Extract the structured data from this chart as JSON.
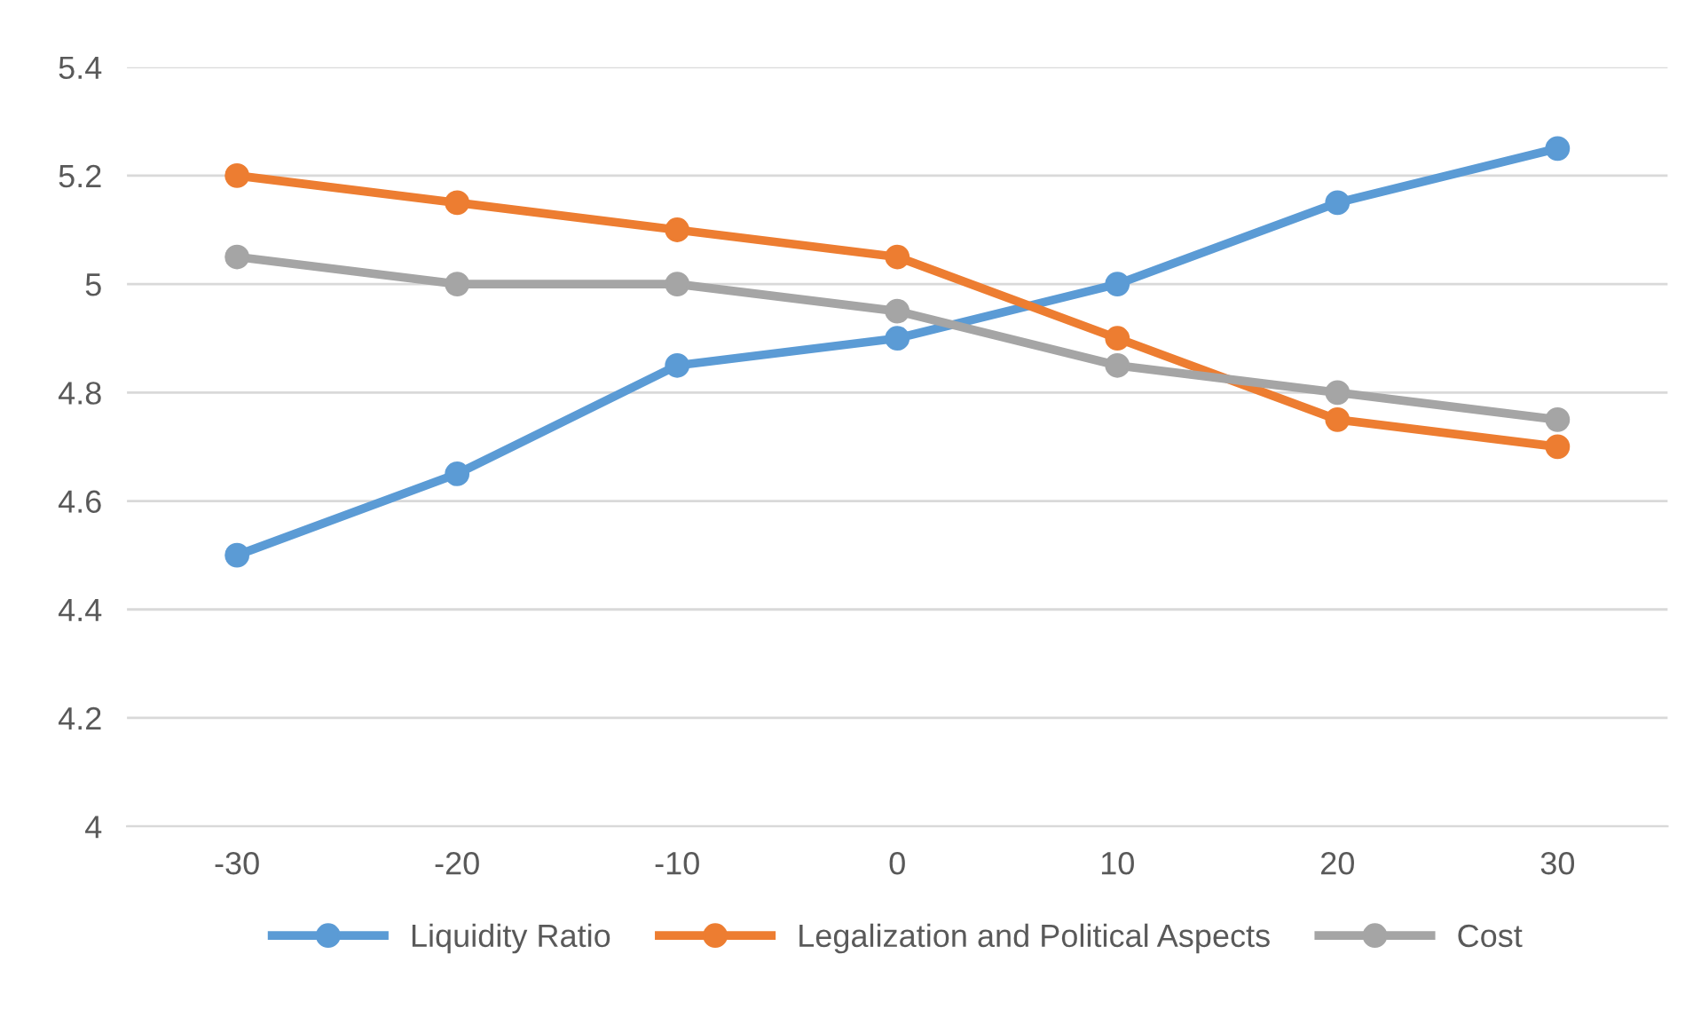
{
  "chart_data": {
    "type": "line",
    "categories": [
      "-30",
      "-20",
      "-10",
      "0",
      "10",
      "20",
      "30"
    ],
    "series": [
      {
        "name": "Liquidity Ratio",
        "color": "#5b9bd5",
        "values": [
          4.5,
          4.65,
          4.85,
          4.9,
          5.0,
          5.15,
          5.25
        ]
      },
      {
        "name": "Legalization and Political Aspects",
        "color": "#ed7d31",
        "values": [
          5.2,
          5.15,
          5.1,
          5.05,
          4.9,
          4.75,
          4.7
        ]
      },
      {
        "name": "Cost",
        "color": "#a5a5a5",
        "values": [
          5.05,
          5.0,
          5.0,
          4.95,
          4.85,
          4.8,
          4.75
        ]
      }
    ],
    "ylim": [
      4,
      5.4
    ],
    "yticks": [
      4,
      4.2,
      4.4,
      4.6,
      4.8,
      5,
      5.2,
      5.4
    ],
    "grid": "y",
    "legend": "bottom",
    "marker": "circle",
    "line_style": "solid"
  }
}
